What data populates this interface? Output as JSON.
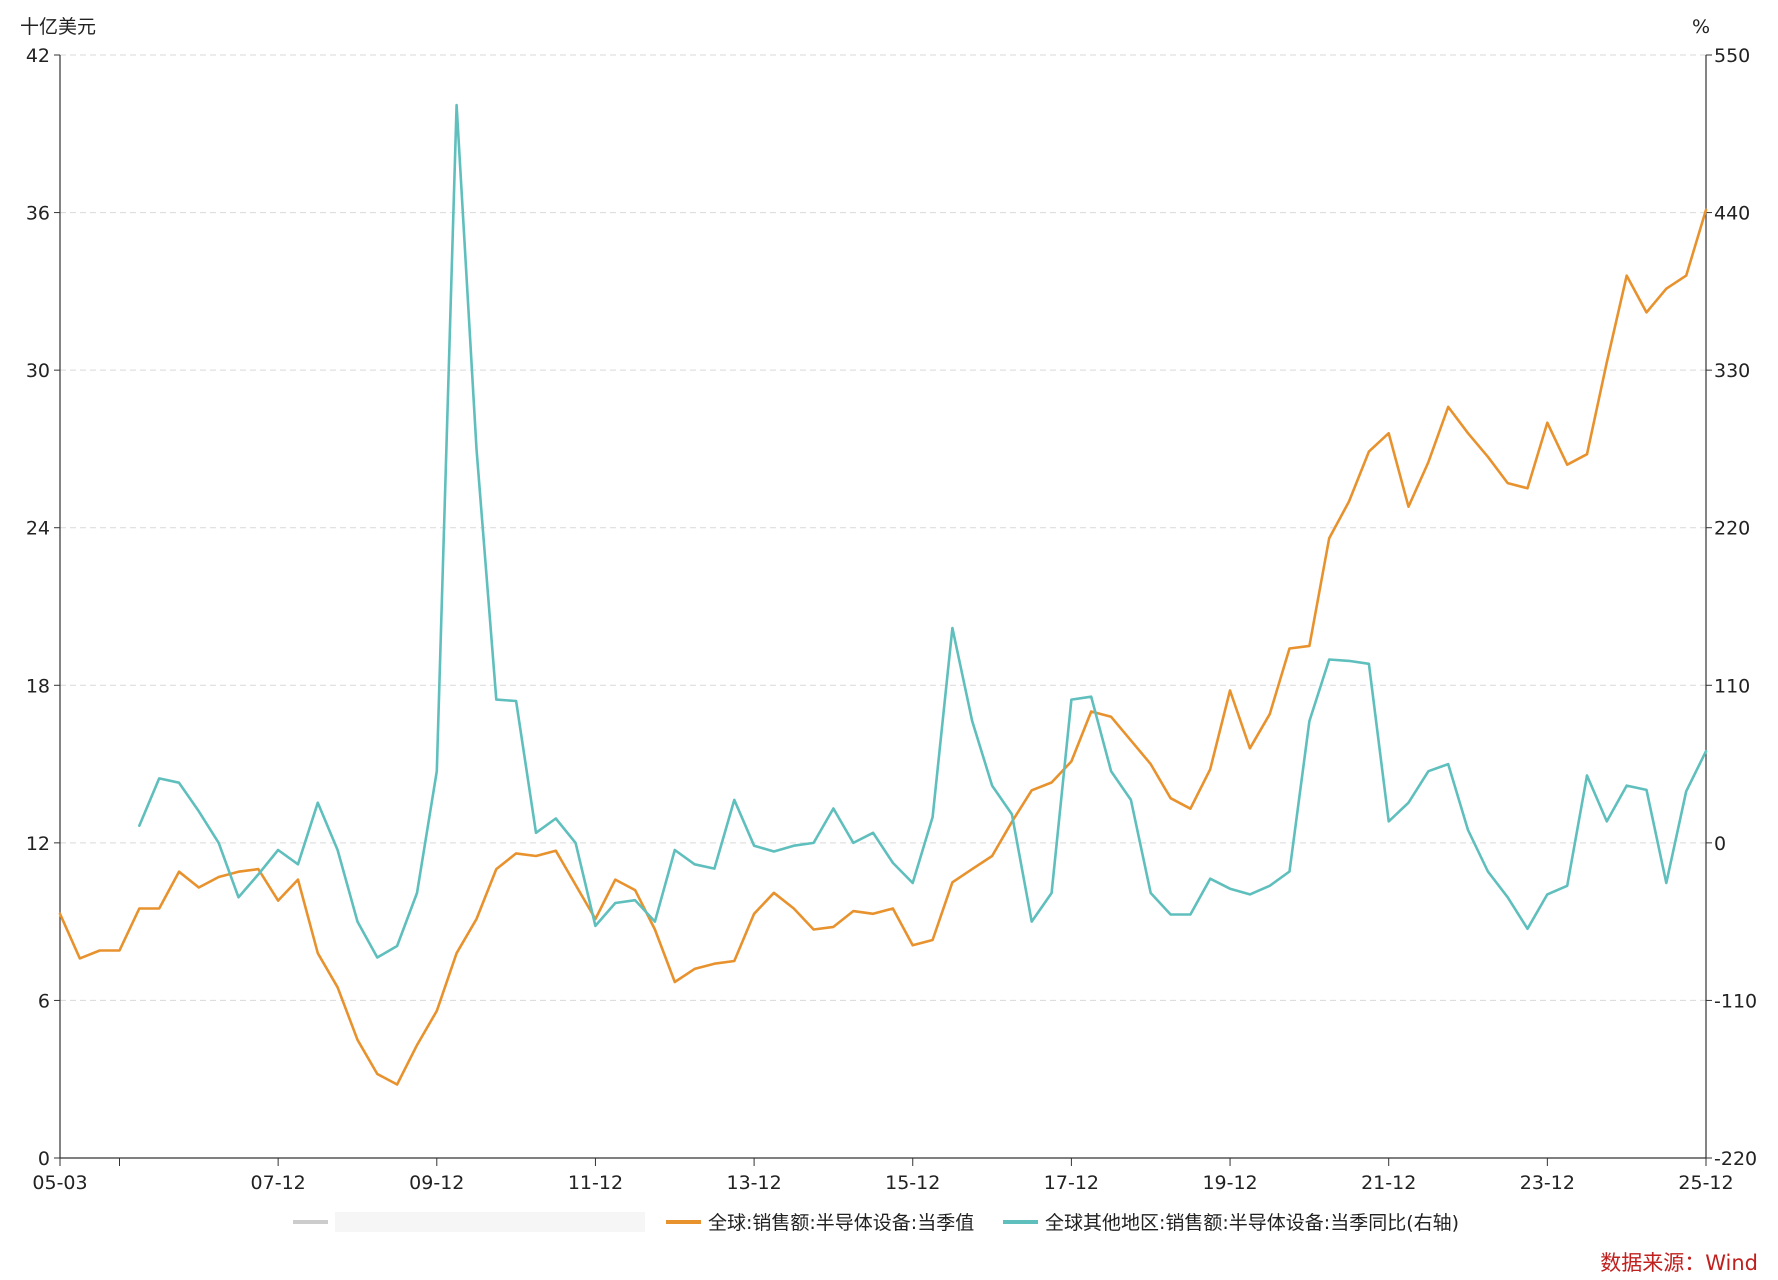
{
  "chart_data": {
    "type": "line",
    "title": "",
    "left_axis": {
      "unit": "十亿美元",
      "ticks": [
        0,
        6,
        12,
        18,
        24,
        30,
        36,
        42
      ],
      "ylim": [
        0,
        42
      ]
    },
    "right_axis": {
      "unit": "%",
      "ticks": [
        -220,
        -110,
        0,
        110,
        220,
        330,
        440,
        550
      ],
      "ylim": [
        -220,
        550
      ]
    },
    "x_ticks": [
      "05-03",
      "07-12",
      "09-12",
      "11-12",
      "13-12",
      "15-12",
      "17-12",
      "19-12",
      "21-12",
      "23-12",
      "25-12"
    ],
    "x_tick_index": [
      0,
      11,
      19,
      27,
      35,
      43,
      51,
      59,
      67,
      75,
      83
    ],
    "x_minor_tick_index": [
      3
    ],
    "x_count": 84,
    "grid": true,
    "legend_position": "bottom",
    "source": "数据来源：Wind",
    "series": [
      {
        "name": "全球:销售额:半导体设备:当季值",
        "axis": "left",
        "color": "#e8922e",
        "values": [
          9.3,
          7.6,
          7.9,
          7.9,
          9.5,
          9.5,
          10.9,
          10.3,
          10.7,
          10.9,
          11.0,
          9.8,
          10.6,
          7.8,
          6.5,
          4.5,
          3.2,
          2.8,
          4.3,
          5.6,
          7.8,
          9.1,
          11.0,
          11.6,
          11.5,
          11.7,
          10.4,
          9.1,
          10.6,
          10.2,
          8.7,
          6.7,
          7.2,
          7.4,
          7.5,
          9.3,
          10.1,
          9.5,
          8.7,
          8.8,
          9.4,
          9.3,
          9.5,
          8.1,
          8.3,
          10.5,
          11.0,
          11.5,
          12.8,
          14.0,
          14.3,
          15.1,
          17.0,
          16.8,
          15.9,
          15.0,
          13.7,
          13.3,
          14.8,
          17.8,
          15.6,
          16.9,
          19.4,
          19.5,
          23.6,
          25.0,
          26.9,
          27.6,
          24.8,
          26.5,
          28.6,
          27.6,
          26.7,
          25.7,
          25.5,
          28.0,
          26.4,
          26.8,
          30.3,
          33.6,
          32.2,
          33.1,
          33.6,
          36.1
        ]
      },
      {
        "name": "全球其他地区:销售额:半导体设备:当季同比(右轴)",
        "axis": "right",
        "color": "#5fbfbd",
        "values": [
          null,
          null,
          null,
          null,
          12,
          45,
          42,
          22,
          0,
          -38,
          -22,
          -5,
          -15,
          28,
          -5,
          -55,
          -80,
          -72,
          -35,
          50,
          515,
          275,
          100,
          99,
          7,
          17,
          0,
          -58,
          -42,
          -40,
          -55,
          -5,
          -15,
          -18,
          30,
          -2,
          -6,
          -2,
          0,
          24,
          0,
          7,
          -14,
          -28,
          18,
          150,
          85,
          40,
          20,
          -55,
          -35,
          100,
          102,
          50,
          30,
          -35,
          -50,
          -50,
          -25,
          -32,
          -36,
          -30,
          -20,
          85,
          128,
          127,
          125,
          15,
          28,
          50,
          55,
          9,
          -20,
          -38,
          -60,
          -36,
          -30,
          47,
          15,
          40,
          37,
          -28,
          36,
          64
        ]
      }
    ]
  }
}
